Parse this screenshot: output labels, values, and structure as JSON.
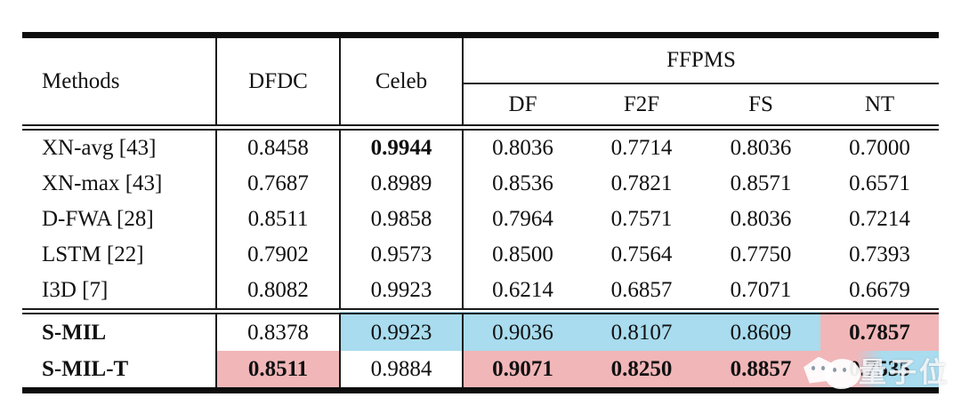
{
  "colors": {
    "highlight_blue": "#a8dcee",
    "highlight_pink": "#f1b6b8",
    "rule_black": "#0d0d0d"
  },
  "table": {
    "header": {
      "methods": "Methods",
      "dfdc": "DFDC",
      "celeb": "Celeb",
      "ffpms": "FFPMS",
      "sub": [
        "DF",
        "F2F",
        "FS",
        "NT"
      ]
    },
    "rows": [
      {
        "section": "baseline",
        "method": "XN-avg [43]",
        "method_bold": false,
        "cells": [
          {
            "v": "0.8458"
          },
          {
            "v": "0.9944",
            "bold": true
          },
          {
            "v": "0.8036"
          },
          {
            "v": "0.7714"
          },
          {
            "v": "0.8036"
          },
          {
            "v": "0.7000"
          }
        ]
      },
      {
        "section": "baseline",
        "method": "XN-max [43]",
        "method_bold": false,
        "cells": [
          {
            "v": "0.7687"
          },
          {
            "v": "0.8989"
          },
          {
            "v": "0.8536"
          },
          {
            "v": "0.7821"
          },
          {
            "v": "0.8571"
          },
          {
            "v": "0.6571"
          }
        ]
      },
      {
        "section": "baseline",
        "method": "D-FWA [28]",
        "method_bold": false,
        "cells": [
          {
            "v": "0.8511"
          },
          {
            "v": "0.9858"
          },
          {
            "v": "0.7964"
          },
          {
            "v": "0.7571"
          },
          {
            "v": "0.8036"
          },
          {
            "v": "0.7214"
          }
        ]
      },
      {
        "section": "baseline",
        "method": "LSTM [22]",
        "method_bold": false,
        "cells": [
          {
            "v": "0.7902"
          },
          {
            "v": "0.9573"
          },
          {
            "v": "0.8500"
          },
          {
            "v": "0.7564"
          },
          {
            "v": "0.7750"
          },
          {
            "v": "0.7393"
          }
        ]
      },
      {
        "section": "baseline",
        "method": "I3D [7]",
        "method_bold": false,
        "cells": [
          {
            "v": "0.8082"
          },
          {
            "v": "0.9923"
          },
          {
            "v": "0.6214"
          },
          {
            "v": "0.6857"
          },
          {
            "v": "0.7071"
          },
          {
            "v": "0.6679"
          }
        ]
      },
      {
        "section": "proposed",
        "method": "S-MIL",
        "method_bold": true,
        "cells": [
          {
            "v": "0.8378"
          },
          {
            "v": "0.9923",
            "bg": "blue"
          },
          {
            "v": "0.9036",
            "bg": "blue"
          },
          {
            "v": "0.8107",
            "bg": "blue"
          },
          {
            "v": "0.8609",
            "bg": "blue"
          },
          {
            "v": "0.7857",
            "bold": true,
            "bg": "pink"
          }
        ]
      },
      {
        "section": "proposed",
        "method": "S-MIL-T",
        "method_bold": true,
        "cells": [
          {
            "v": "0.8511",
            "bold": true,
            "bg": "pink"
          },
          {
            "v": "0.9884"
          },
          {
            "v": "0.9071",
            "bold": true,
            "bg": "pink"
          },
          {
            "v": "0.8250",
            "bold": true,
            "bg": "pink"
          },
          {
            "v": "0.8857",
            "bold": true,
            "bg": "split"
          },
          {
            "v": "0.7535",
            "bold": true,
            "bg": "split",
            "watermarked": true
          }
        ]
      }
    ]
  },
  "watermark": {
    "text": "量子位"
  }
}
